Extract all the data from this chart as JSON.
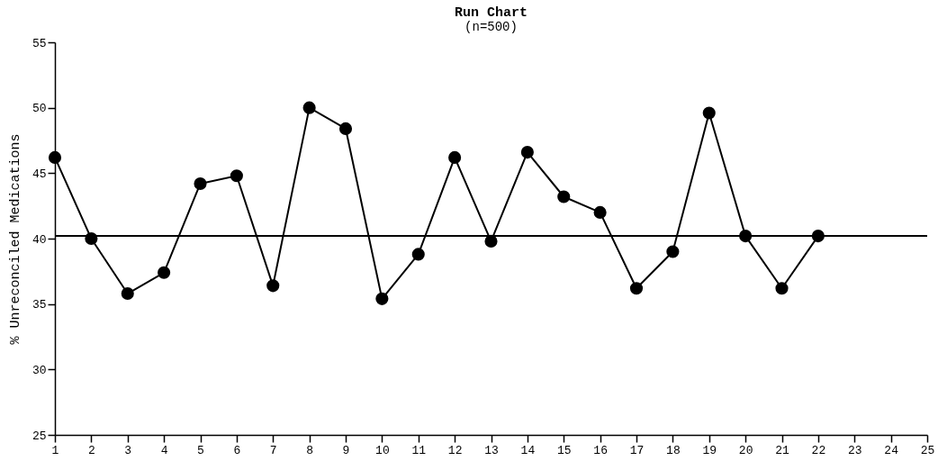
{
  "chart_data": {
    "type": "line",
    "title": "Run Chart",
    "subtitle": "(n=500)",
    "ylabel": "% Unreconciled Medications",
    "x": [
      1,
      2,
      3,
      4,
      5,
      6,
      7,
      8,
      9,
      10,
      11,
      12,
      13,
      14,
      15,
      16,
      17,
      18,
      19,
      20,
      21,
      22
    ],
    "series": [
      {
        "color": "#000000",
        "values": [
          46.2,
          40,
          35.8,
          37.4,
          44.2,
          44.8,
          36.4,
          50,
          48.4,
          35.4,
          38.8,
          46.2,
          39.8,
          46.6,
          43.2,
          42,
          36.2,
          39,
          49.6,
          40.2,
          36.2,
          40.2
        ]
      }
    ],
    "xlim": [
      1,
      25
    ],
    "xticks": [
      1,
      2,
      3,
      4,
      5,
      6,
      7,
      8,
      9,
      10,
      11,
      12,
      13,
      14,
      15,
      16,
      17,
      18,
      19,
      20,
      21,
      22,
      23,
      24,
      25
    ],
    "ylim": [
      25,
      55
    ],
    "yticks": [
      25,
      30,
      35,
      40,
      45,
      50,
      55
    ],
    "ref_lines": [
      {
        "axis": "y",
        "value": 40.2,
        "color": "#000000"
      }
    ],
    "marker": "circle",
    "line_style": "solid",
    "grid": false
  }
}
